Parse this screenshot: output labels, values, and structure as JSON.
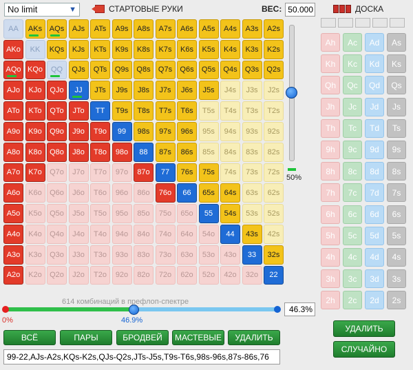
{
  "header": {
    "limit_value": "No limit",
    "hands_title": "СТАРТОВЫЕ РУКИ",
    "weight_label": "ВЕС:",
    "weight_value": "50.000",
    "board_title": "ДОСКА"
  },
  "ranks": [
    "A",
    "K",
    "Q",
    "J",
    "T",
    "9",
    "8",
    "7",
    "6",
    "5",
    "4",
    "3",
    "2"
  ],
  "selected_hands": [
    "AKs",
    "AQs",
    "AJs",
    "ATs",
    "A9s",
    "A8s",
    "A7s",
    "A6s",
    "A5s",
    "A4s",
    "A3s",
    "A2s",
    "KQs",
    "KJs",
    "KTs",
    "K9s",
    "K8s",
    "K7s",
    "K6s",
    "K5s",
    "K4s",
    "K3s",
    "K2s",
    "QJs",
    "QTs",
    "Q9s",
    "Q8s",
    "Q7s",
    "Q6s",
    "Q5s",
    "Q4s",
    "Q3s",
    "Q2s",
    "JTs",
    "J9s",
    "J8s",
    "J7s",
    "J6s",
    "J5s",
    "T9s",
    "T8s",
    "T7s",
    "T6s",
    "98s",
    "97s",
    "96s",
    "87s",
    "86s",
    "76s",
    "75s",
    "65s",
    "64s",
    "54s",
    "43s",
    "32s",
    "AKo",
    "AQo",
    "KQo",
    "AJo",
    "KJo",
    "QJo",
    "ATo",
    "KTo",
    "QTo",
    "JTo",
    "A9o",
    "K9o",
    "Q9o",
    "J9o",
    "T9o",
    "A8o",
    "K8o",
    "Q8o",
    "J8o",
    "T8o",
    "98o",
    "A7o",
    "K7o",
    "87o",
    "A6o",
    "76o",
    "A5o",
    "A4o",
    "A3o",
    "A2o",
    "99",
    "88",
    "77",
    "66",
    "55",
    "44",
    "33",
    "22",
    "JJ",
    "TT"
  ],
  "weighted_hands": [
    "AKs",
    "AQs",
    "QQ",
    "AQo",
    "JJ"
  ],
  "slider": {
    "vertical_value": "50%",
    "vertical_fraction": 0.5,
    "combinations_caption": "614 комбинаций в префлоп-спектре",
    "min_label": "0%",
    "current_label": "46.9%",
    "current_fraction": 0.469,
    "percent_value": "46.3%"
  },
  "buttons": {
    "all": "ВСЁ",
    "pairs": "ПАРЫ",
    "broadway": "БРОДВЕЙ",
    "suited": "МАСТЕВЫЕ",
    "delete": "УДАЛИТЬ",
    "board_delete": "УДАЛИТЬ",
    "board_random": "СЛУЧАЙНО"
  },
  "range_text": "99-22,AJs-A2s,KQs-K2s,QJs-Q2s,JTs-J5s,T9s-T6s,98s-96s,87s-86s,76",
  "board": {
    "suits": [
      "h",
      "c",
      "d",
      "s"
    ],
    "colors": {
      "h": "#f5cfcf",
      "c": "#bfe2c4",
      "d": "#b9dbf6",
      "s": "#c2c2c2"
    }
  }
}
